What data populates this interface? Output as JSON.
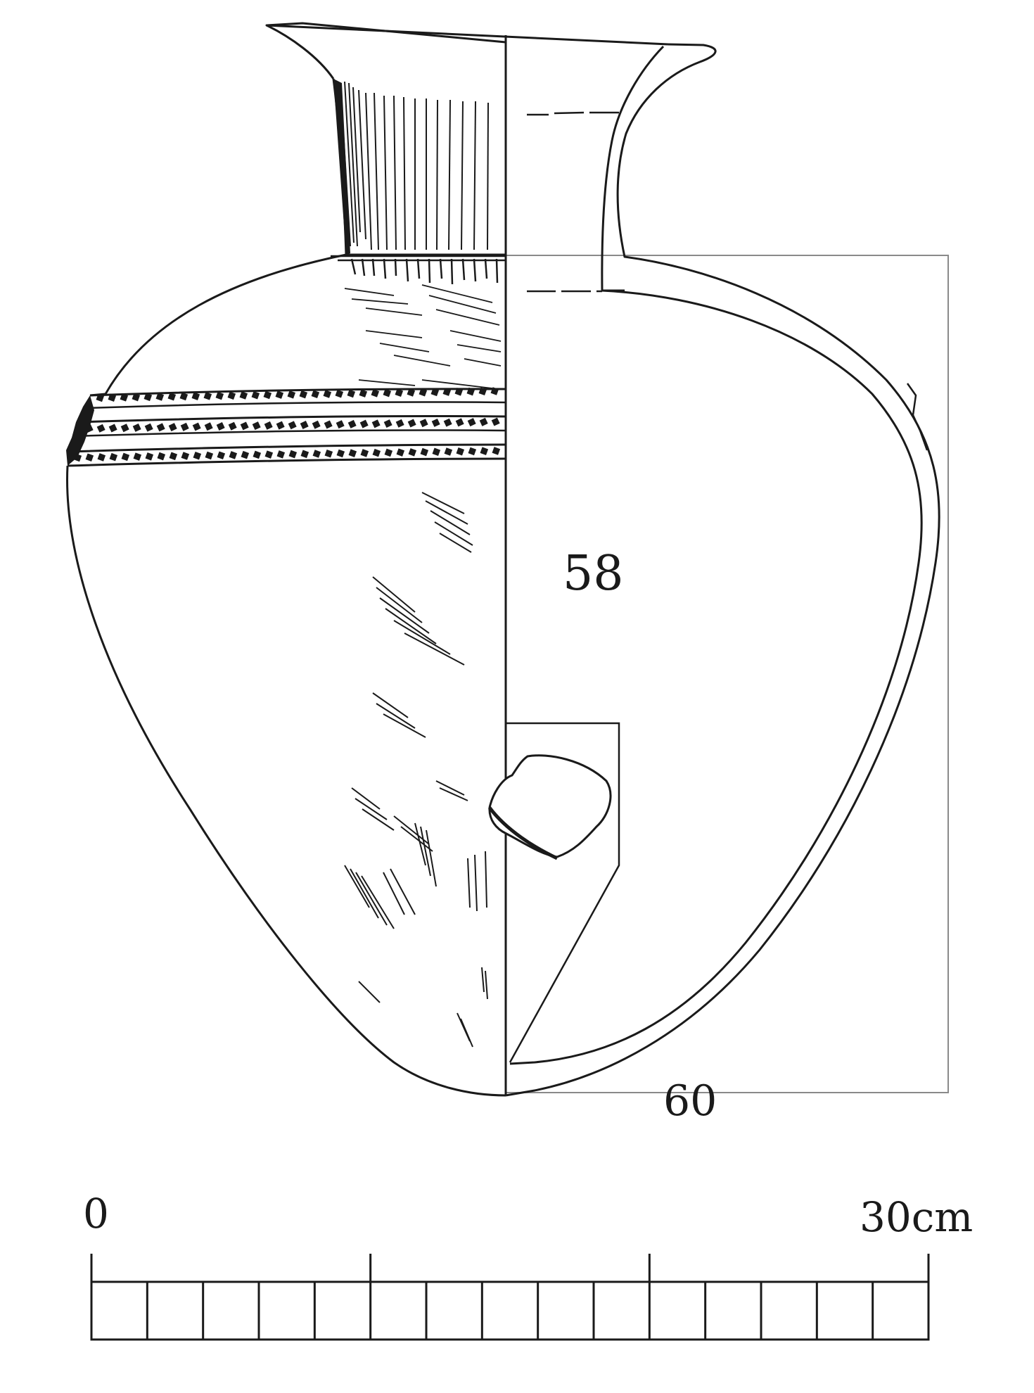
{
  "drawing": {
    "object": "vessel",
    "dimension_label": "60",
    "faint_label": "58"
  },
  "scale_bar": {
    "start_label": "0",
    "end_label": "30cm",
    "divisions": 15,
    "major_ticks": 3
  },
  "colors": {
    "ink": "#1a1a1a",
    "frame": "#8a8a8a",
    "faint": "#d2d2d2",
    "background": "#ffffff"
  }
}
